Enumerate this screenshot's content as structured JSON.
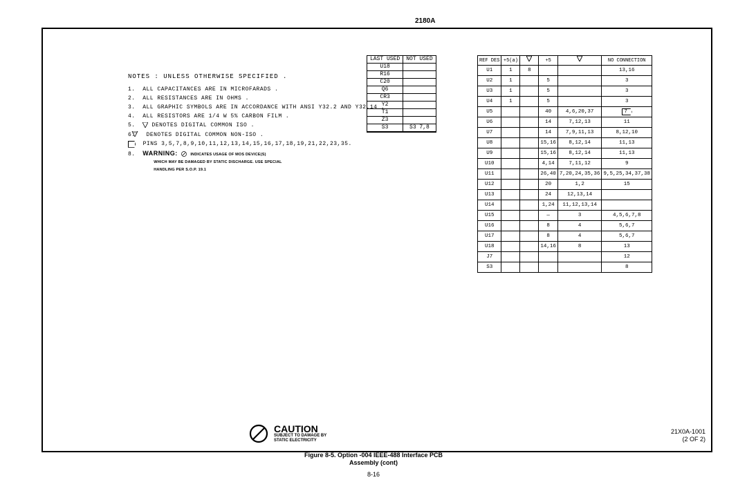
{
  "header": {
    "code": "2180A"
  },
  "notes": {
    "title": "NOTES : UNLESS OTHERWISE SPECIFIED .",
    "items": [
      "ALL CAPACITANCES ARE IN MICROFARADS .",
      "ALL RESISTANCES ARE IN OHMS .",
      "ALL GRAPHIC SYMBOLS ARE IN ACCORDANCE WITH ANSI Y32.2 AND Y32.14 .",
      "ALL RESISTORS ARE 1/4 W 5% CARBON FILM .",
      "DENOTES DIGITAL COMMON ISO .",
      "DENOTES DIGITAL COMMON NON-ISO ."
    ],
    "pins_prefix": "7",
    "pins": "PINS 3,5,7,8,9,10,11,12,13,14,15,16,17,18,19,21,22,23,35.",
    "warn_label": "WARNING:",
    "warn_sub1": "INDICATES USAGE OF MOS DEVICE(S)",
    "warn_sub2": "WHICH MAY BE DAMAGED BY STATIC DISCHARGE. USE SPECIAL",
    "warn_sub3": "HANDLING PER S.O.P. 19.1"
  },
  "last_used": {
    "headers": [
      "LAST USED",
      "NOT USED"
    ],
    "rows": [
      [
        "U18",
        ""
      ],
      [
        "R16",
        ""
      ],
      [
        "C20",
        ""
      ],
      [
        "Q6",
        ""
      ],
      [
        "CR3",
        ""
      ],
      [
        "Y2",
        ""
      ],
      [
        "T1",
        ""
      ],
      [
        "Z3",
        ""
      ],
      [
        "S3",
        "S3  7,8"
      ],
      [
        "",
        ""
      ]
    ]
  },
  "refdes": {
    "headers": [
      "REF DES",
      "+5(a)",
      "▽",
      "+5",
      "▽",
      "NO CONNECTION"
    ],
    "rows": [
      [
        "U1",
        "1",
        "8",
        "",
        "",
        "13,16"
      ],
      [
        "U2",
        "1",
        "",
        "5",
        "",
        "3"
      ],
      [
        "U3",
        "1",
        "",
        "5",
        "",
        "3"
      ],
      [
        "U4",
        "1",
        "",
        "5",
        "",
        "3"
      ],
      [
        "U5",
        "",
        "",
        "40",
        "4,6,20,37",
        "7 ▷"
      ],
      [
        "U6",
        "",
        "",
        "14",
        "7,12,13",
        "11"
      ],
      [
        "U7",
        "",
        "",
        "14",
        "7,9,11,13",
        "8,12,10"
      ],
      [
        "U8",
        "",
        "",
        "15,16",
        "8,12,14",
        "11,13"
      ],
      [
        "U9",
        "",
        "",
        "15,16",
        "8,12,14",
        "11,13"
      ],
      [
        "U10",
        "",
        "",
        "4,14",
        "7,11,12",
        "9"
      ],
      [
        "U11",
        "",
        "",
        "26,40",
        "7,20,24,35,36",
        "9,5,25,34,37,38"
      ],
      [
        "U12",
        "",
        "",
        "20",
        "1,2",
        "15"
      ],
      [
        "U13",
        "",
        "",
        "24",
        "12,13,14",
        ""
      ],
      [
        "U14",
        "",
        "",
        "1,24",
        "11,12,13,14",
        ""
      ],
      [
        "U15",
        "",
        "",
        "—",
        "3",
        "4,5,6,7,8"
      ],
      [
        "U16",
        "",
        "",
        "8",
        "4",
        "5,6,7"
      ],
      [
        "U17",
        "",
        "",
        "8",
        "4",
        "5,6,7"
      ],
      [
        "U18",
        "",
        "",
        "14,16",
        "8",
        "13"
      ],
      [
        "J7",
        "",
        "",
        "",
        "",
        "12"
      ],
      [
        "S3",
        "",
        "",
        "",
        "",
        "8"
      ]
    ]
  },
  "caution": {
    "title": "CAUTION",
    "line1": "SUBJECT TO DAMAGE BY",
    "line2": "STATIC ELECTRICITY"
  },
  "doc_code": {
    "line1": "21X0A-1001",
    "line2": "(2 OF 2)"
  },
  "caption": {
    "line1": "Figure 8-5. Option -004 IEEE-488 Interface PCB",
    "line2": "Assembly (cont)"
  },
  "page_number": "8-16"
}
